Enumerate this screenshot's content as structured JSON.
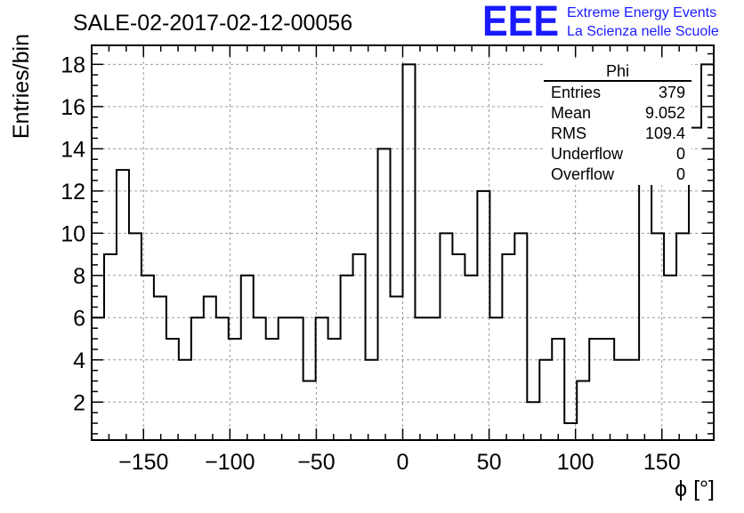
{
  "title": "SALE-02-2017-02-12-00056",
  "logo": {
    "mark": "EEE",
    "line1": "Extreme Energy Events",
    "line2": "La Scienza nelle Scuole",
    "color": "#1a1aff"
  },
  "chart_data": {
    "type": "bar",
    "histogram": true,
    "title": "SALE-02-2017-02-12-00056",
    "xlabel": "ϕ [°]",
    "ylabel": "Entries/bin",
    "xlim": [
      -180,
      180
    ],
    "ylim": [
      0.2,
      18.9
    ],
    "bin_width": 7.2,
    "bin_edges_start": -180,
    "values": [
      6,
      9,
      13,
      10,
      8,
      7,
      5,
      4,
      6,
      7,
      6,
      5,
      8,
      6,
      5,
      6,
      6,
      3,
      6,
      5,
      8,
      9,
      4,
      14,
      7,
      18,
      6,
      6,
      10,
      9,
      8,
      12,
      6,
      9,
      10,
      2,
      4,
      5,
      1,
      3,
      5,
      5,
      4,
      4,
      18,
      10,
      8,
      10,
      15,
      18
    ],
    "x_ticks": [
      -150,
      -100,
      -50,
      0,
      50,
      100,
      150
    ],
    "x_tick_labels": [
      "−150",
      "−100",
      "−50",
      "0",
      "50",
      "100",
      "150"
    ],
    "y_ticks": [
      2,
      4,
      6,
      8,
      10,
      12,
      14,
      16,
      18
    ],
    "y_tick_labels": [
      "2",
      "4",
      "6",
      "8",
      "10",
      "12",
      "14",
      "16",
      "18"
    ],
    "grid": true,
    "line_color": "#000000"
  },
  "stats": {
    "title": "Phi",
    "rows": [
      {
        "label": "Entries",
        "value": "379"
      },
      {
        "label": "Mean",
        "value": "9.052"
      },
      {
        "label": "RMS",
        "value": "109.4"
      },
      {
        "label": "Underflow",
        "value": "0"
      },
      {
        "label": "Overflow",
        "value": "0"
      }
    ]
  }
}
